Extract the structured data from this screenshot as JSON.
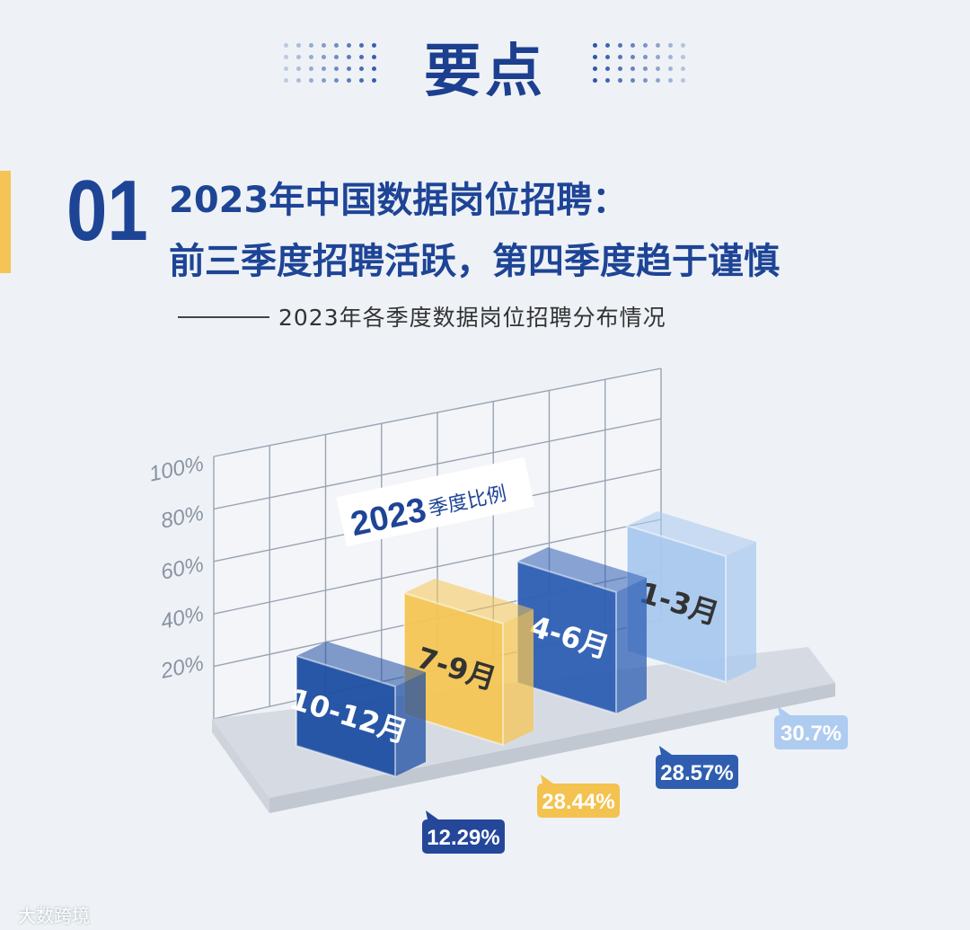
{
  "header": {
    "section_title": "要点",
    "number": "01",
    "headline_line1": "2023年中国数据岗位招聘：",
    "headline_line2": "前三季度招聘活跃，第四季度趋于谨慎",
    "subtitle": "2023年各季度数据岗位招聘分布情况"
  },
  "chart_data": {
    "type": "bar",
    "title": "2023 季度比例",
    "title_year": "2023",
    "title_text": "季度比例",
    "y_ticks": [
      "20%",
      "40%",
      "60%",
      "80%",
      "100%"
    ],
    "ylim": [
      0,
      100
    ],
    "categories": [
      "10-12月",
      "7-9月",
      "4-6月",
      "1-3月"
    ],
    "values": [
      12.29,
      28.44,
      28.57,
      30.7
    ],
    "value_labels": [
      "12.29%",
      "28.44%",
      "28.57%",
      "30.7%"
    ],
    "colors": [
      "#1f4fa3",
      "#f5c654",
      "#2f5fb4",
      "#a9c9ef"
    ],
    "label_colors": [
      "#ffffff",
      "#333333",
      "#ffffff",
      "#333333"
    ],
    "badge_colors": [
      "#24479a",
      "#f3c24f",
      "#2f5eb0",
      "#aecbf0"
    ],
    "grid": true
  },
  "footer": {
    "watermark": "大数跨境"
  }
}
